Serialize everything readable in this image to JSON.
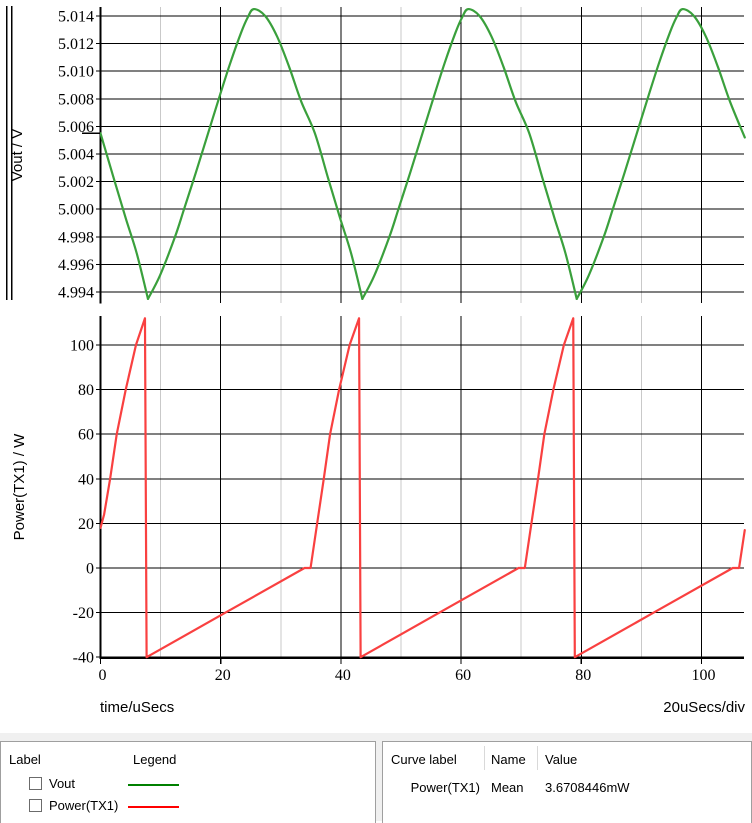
{
  "plot": {
    "x_axis": {
      "label": "time/uSecs",
      "scale_per_div": "20uSecs/div",
      "ticks": [
        0,
        20,
        40,
        60,
        80,
        100
      ],
      "minor_ticks": [
        10,
        30,
        50,
        70,
        90
      ],
      "range_us": [
        0,
        107.2
      ]
    },
    "top": {
      "ylabel": "Vout / V",
      "unit": "V",
      "yticks": [
        5.014,
        5.012,
        5.01,
        5.008,
        5.006,
        5.004,
        5.002,
        5.0,
        4.998,
        4.996,
        4.994
      ],
      "start_marker_v": 5.0055
    },
    "bottom": {
      "ylabel": "Power(TX1) / W",
      "unit": "W",
      "yticks": [
        100,
        80,
        60,
        40,
        20,
        0,
        -20,
        -40
      ]
    }
  },
  "chart_data": [
    {
      "type": "line",
      "name": "Vout",
      "ylabel": "Vout / V",
      "xlabel": "time/uSecs",
      "color": "#3aa03c",
      "ylim": [
        4.9935,
        5.0145
      ],
      "xlim": [
        0,
        107.2
      ],
      "grid": true,
      "segments": [
        [
          [
            0,
            5.0055
          ],
          [
            2.23,
            5.0022
          ],
          [
            4.23,
            4.9993
          ],
          [
            6.03,
            4.9968
          ],
          [
            7.9,
            4.9935
          ]
        ],
        [
          [
            7.9,
            4.9935
          ],
          [
            9.9,
            4.9952
          ],
          [
            12.4,
            4.998
          ],
          [
            13.9,
            5.0
          ],
          [
            15.9,
            5.0027
          ],
          [
            17.9,
            5.0055
          ],
          [
            19.9,
            5.0083
          ],
          [
            21.6,
            5.0106
          ],
          [
            23.4,
            5.0128
          ],
          [
            24.5,
            5.0139
          ],
          [
            25.5,
            5.0145
          ],
          [
            27.4,
            5.014
          ],
          [
            29.4,
            5.0125
          ],
          [
            31.4,
            5.0103
          ],
          [
            33.4,
            5.0078
          ],
          [
            35.67,
            5.0055
          ],
          [
            37.9,
            5.0022
          ],
          [
            39.9,
            4.9993
          ],
          [
            41.7,
            4.9968
          ],
          [
            43.57,
            4.9935
          ]
        ],
        [
          [
            43.57,
            4.9935
          ],
          [
            45.57,
            4.9952
          ],
          [
            48.07,
            4.998
          ],
          [
            49.57,
            5.0
          ],
          [
            51.57,
            5.0027
          ],
          [
            53.57,
            5.0055
          ],
          [
            55.57,
            5.0083
          ],
          [
            57.27,
            5.0106
          ],
          [
            59.07,
            5.0128
          ],
          [
            60.17,
            5.0139
          ],
          [
            61.17,
            5.0145
          ],
          [
            63.07,
            5.014
          ],
          [
            65.07,
            5.0125
          ],
          [
            67.07,
            5.0103
          ],
          [
            69.07,
            5.0078
          ],
          [
            71.34,
            5.0055
          ],
          [
            73.57,
            5.0022
          ],
          [
            75.57,
            4.9993
          ],
          [
            77.37,
            4.9968
          ],
          [
            79.24,
            4.9935
          ]
        ],
        [
          [
            79.24,
            4.9935
          ],
          [
            81.24,
            4.9952
          ],
          [
            83.74,
            4.998
          ],
          [
            85.24,
            5.0
          ],
          [
            87.24,
            5.0027
          ],
          [
            89.24,
            5.0055
          ],
          [
            91.24,
            5.0083
          ],
          [
            92.94,
            5.0106
          ],
          [
            94.74,
            5.0128
          ],
          [
            95.84,
            5.0139
          ],
          [
            96.84,
            5.0145
          ],
          [
            98.74,
            5.014
          ],
          [
            100.74,
            5.0125
          ],
          [
            102.74,
            5.0103
          ],
          [
            104.74,
            5.0078
          ],
          [
            107.2,
            5.0052
          ]
        ]
      ]
    },
    {
      "type": "line",
      "name": "Power(TX1)",
      "ylabel": "Power(TX1) / W",
      "xlabel": "time/uSecs",
      "color": "#f94040",
      "ylim": [
        -40,
        112
      ],
      "xlim": [
        0,
        107.2
      ],
      "grid": true,
      "points": [
        [
          0,
          18
        ],
        [
          0.6,
          24
        ],
        [
          1.6,
          40
        ],
        [
          2.7,
          60
        ],
        [
          4.2,
          80
        ],
        [
          5.9,
          100
        ],
        [
          7.4,
          112
        ],
        [
          7.67,
          -40
        ],
        [
          20.8,
          -20
        ],
        [
          33.95,
          0
        ],
        [
          34.95,
          0
        ],
        [
          36.05,
          20
        ],
        [
          37.15,
          40
        ],
        [
          38.2,
          60
        ],
        [
          39.7,
          80
        ],
        [
          41.45,
          100
        ],
        [
          43.02,
          112
        ],
        [
          43.28,
          -40
        ],
        [
          56.4,
          -20
        ],
        [
          69.55,
          0
        ],
        [
          70.6,
          0
        ],
        [
          71.7,
          20
        ],
        [
          72.8,
          40
        ],
        [
          73.85,
          60
        ],
        [
          75.35,
          80
        ],
        [
          77.1,
          100
        ],
        [
          78.66,
          112
        ],
        [
          78.92,
          -40
        ],
        [
          92.05,
          -20
        ],
        [
          105.2,
          0
        ],
        [
          106.25,
          0
        ],
        [
          107.2,
          17
        ]
      ]
    }
  ],
  "panels": {
    "legend": {
      "headers": [
        "Label",
        "Legend"
      ],
      "rows": [
        {
          "label": "Vout",
          "checked": false,
          "color": "#008000"
        },
        {
          "label": "Power(TX1)",
          "checked": false,
          "color": "#ff0000"
        }
      ]
    },
    "measurements": {
      "headers": [
        "Curve label",
        "Name",
        "Value"
      ],
      "rows": [
        {
          "curve_label": "Power(TX1)",
          "name": "Mean",
          "value": "3.6708446mW"
        }
      ]
    }
  },
  "colors": {
    "grid_major": "#000000",
    "grid_minor": "#c9c9c9",
    "axis": "#000000",
    "vout_curve": "#3aa03c",
    "power_curve": "#f94040",
    "panel_border": "#9f9f9f",
    "panel_bg": "#ffffff",
    "strip_bg": "#f0f0f0"
  }
}
